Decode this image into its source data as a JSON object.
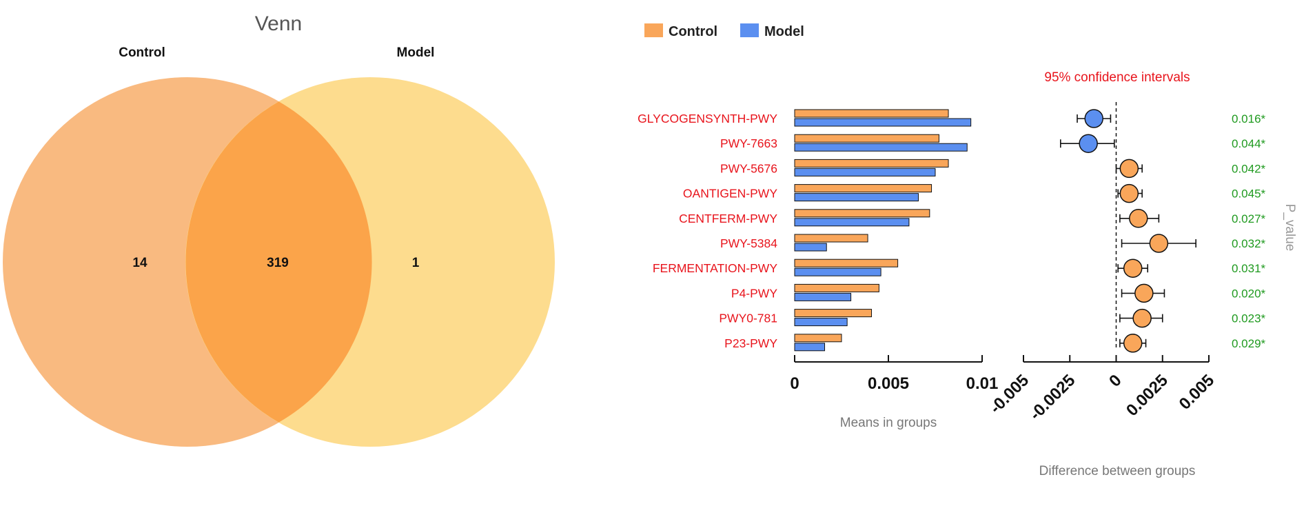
{
  "colors": {
    "control": "#f9a65a",
    "model": "#5b8ff0",
    "venn_left": "#f9ba80",
    "venn_right": "#fddc8e",
    "venn_overlap": "#fba44a",
    "label_red": "#e8141c",
    "pvalue_green": "#1f9a1f"
  },
  "venn": {
    "title": "Venn",
    "sets": [
      {
        "name": "Control",
        "only_count": "14"
      },
      {
        "name": "Model",
        "only_count": "1"
      }
    ],
    "overlap_count": "319"
  },
  "chart_data": [
    {
      "type": "bar",
      "legend": [
        "Control",
        "Model"
      ],
      "legend_position": "top-left",
      "categories": [
        "GLYCOGENSYNTH-PWY",
        "PWY-7663",
        "PWY-5676",
        "OANTIGEN-PWY",
        "CENTFERM-PWY",
        "PWY-5384",
        "FERMENTATION-PWY",
        "P4-PWY",
        "PWY0-781",
        "P23-PWY"
      ],
      "orientation": "horizontal",
      "series": [
        {
          "name": "Control",
          "values": [
            0.0082,
            0.0077,
            0.0082,
            0.0073,
            0.0072,
            0.0039,
            0.0055,
            0.0045,
            0.0041,
            0.0025
          ]
        },
        {
          "name": "Model",
          "values": [
            0.0094,
            0.0092,
            0.0075,
            0.0066,
            0.0061,
            0.0017,
            0.0046,
            0.003,
            0.0028,
            0.0016
          ]
        }
      ],
      "xlabel": "Means in groups",
      "xlim": [
        0,
        0.01
      ],
      "xticks": [
        "0",
        "0.005",
        "0.01"
      ]
    },
    {
      "type": "scatter",
      "title": "95% confidence intervals",
      "categories": [
        "GLYCOGENSYNTH-PWY",
        "PWY-7663",
        "PWY-5676",
        "OANTIGEN-PWY",
        "CENTFERM-PWY",
        "PWY-5384",
        "FERMENTATION-PWY",
        "P4-PWY",
        "PWY0-781",
        "P23-PWY"
      ],
      "estimates": [
        -0.0012,
        -0.0015,
        0.0007,
        0.0007,
        0.0012,
        0.0023,
        0.0009,
        0.0015,
        0.0014,
        0.0009
      ],
      "ci_low": [
        -0.0021,
        -0.003,
        0.0,
        0.0001,
        0.0002,
        0.0003,
        0.0001,
        0.0003,
        0.0002,
        0.0002
      ],
      "ci_high": [
        -0.0003,
        -0.0001,
        0.0014,
        0.0014,
        0.0023,
        0.0043,
        0.0017,
        0.0026,
        0.0025,
        0.0016
      ],
      "point_series": [
        "Model",
        "Model",
        "Control",
        "Control",
        "Control",
        "Control",
        "Control",
        "Control",
        "Control",
        "Control"
      ],
      "reference_line": 0,
      "xlabel": "Difference between groups",
      "xlim": [
        -0.005,
        0.005
      ],
      "xticks": [
        "-0.005",
        "-0.0025",
        "0",
        "0.0025",
        "0.005"
      ],
      "p_value_label": "P_value",
      "p_values": [
        "0.016*",
        "0.044*",
        "0.042*",
        "0.045*",
        "0.027*",
        "0.032*",
        "0.031*",
        "0.020*",
        "0.023*",
        "0.029*"
      ]
    }
  ]
}
